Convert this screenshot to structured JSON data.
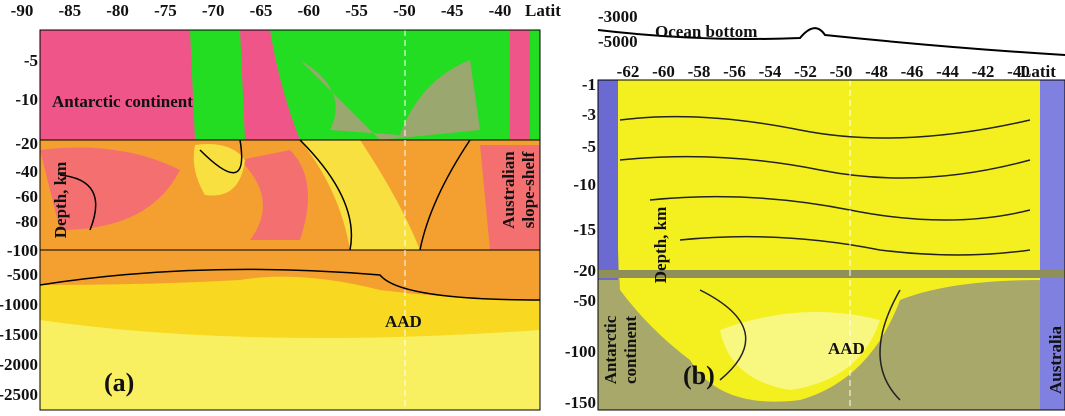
{
  "panels": [
    {
      "x_ticks": [
        "-90",
        "-85",
        "-80",
        "-75",
        "-70",
        "-65",
        "-60",
        "-55",
        "-50",
        "-45",
        "-40"
      ],
      "x_label": "Latit",
      "y_ticks": [
        "-5",
        "-10",
        "-20",
        "-40",
        "-60",
        "-80",
        "-100",
        "-500",
        "-1000",
        "-1500",
        "-2000",
        "-2500"
      ],
      "y_label": "Depth, km",
      "annotations": [
        "Antarctic continent",
        "Australian",
        "slope-shelf",
        "AAD"
      ],
      "tag": "(a)"
    },
    {
      "x_ticks": [
        "-62",
        "-60",
        "-58",
        "-56",
        "-54",
        "-52",
        "-50",
        "-48",
        "-46",
        "-44",
        "-42",
        "-40"
      ],
      "x_label": "Latit",
      "y_ticks": [
        "-1",
        "-3",
        "-5",
        "-10",
        "-15",
        "-20",
        "-50",
        "-100",
        "-150"
      ],
      "y_label": "Depth, km",
      "profile_ticks": [
        "-3000",
        "-5000"
      ],
      "profile_label": "Ocean bottom",
      "annotations": [
        "Antarctic",
        "continent",
        "Australia",
        "AAD"
      ],
      "tag": "(b)"
    }
  ]
}
